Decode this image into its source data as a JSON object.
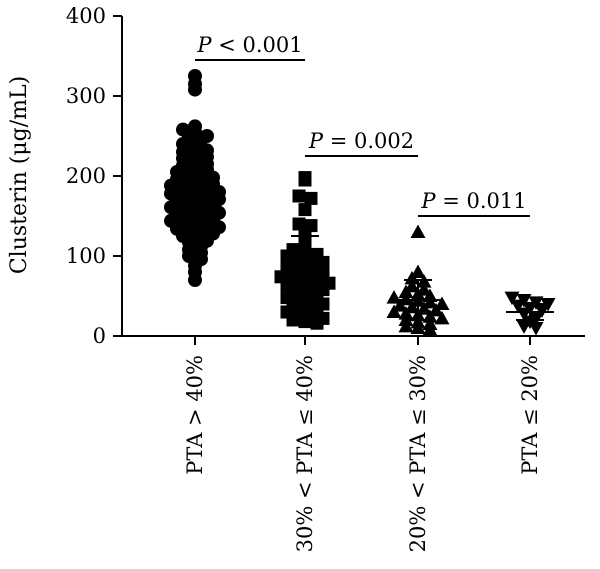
{
  "chart_data": {
    "type": "scatter",
    "ylabel": "Clusterin (μg/mL)",
    "ylim": [
      0,
      400
    ],
    "yticks": [
      "0",
      "100",
      "200",
      "300",
      "400"
    ],
    "categories": [
      "PTA > 40%",
      "30% < PTA ≤ 40%",
      "20% < PTA ≤ 30%",
      "PTA ≤ 20%"
    ],
    "markers": [
      "circle",
      "square",
      "triangle-up",
      "triangle-down"
    ],
    "series": [
      {
        "values": [
          325,
          315,
          308,
          262,
          258,
          255,
          250,
          248,
          245,
          240,
          235,
          232,
          230,
          226,
          224,
          222,
          218,
          215,
          213,
          211,
          208,
          205,
          203,
          200,
          198,
          196,
          194,
          192,
          190,
          188,
          186,
          184,
          182,
          180,
          178,
          176,
          175,
          173,
          171,
          169,
          167,
          165,
          163,
          161,
          160,
          158,
          156,
          154,
          152,
          150,
          148,
          146,
          144,
          142,
          140,
          138,
          136,
          134,
          132,
          130,
          128,
          125,
          122,
          119,
          117,
          112,
          108,
          104,
          100,
          96,
          88,
          80,
          70
        ],
        "median": 187,
        "spread": [
          145,
          230
        ]
      },
      {
        "values": [
          198,
          195,
          175,
          172,
          158,
          140,
          138,
          127,
          120,
          108,
          105,
          102,
          100,
          97,
          95,
          92,
          90,
          88,
          86,
          84,
          82,
          80,
          78,
          76,
          74,
          72,
          70,
          68,
          66,
          64,
          62,
          60,
          58,
          55,
          52,
          50,
          48,
          45,
          42,
          40,
          38,
          35,
          32,
          30,
          28,
          25,
          22,
          20,
          18,
          16
        ],
        "median": 80,
        "spread": [
          35,
          125
        ]
      },
      {
        "values": [
          130,
          80,
          72,
          68,
          62,
          58,
          55,
          52,
          50,
          48,
          46,
          44,
          42,
          40,
          38,
          36,
          34,
          32,
          30,
          28,
          26,
          24,
          22,
          20,
          17,
          15,
          12,
          10,
          8
        ],
        "median": 45,
        "spread": [
          20,
          70
        ]
      },
      {
        "values": [
          48,
          45,
          42,
          40,
          38,
          35,
          32,
          28,
          22,
          18,
          12,
          10
        ],
        "median": 30,
        "spread": [
          20,
          40
        ]
      }
    ],
    "annotations": [
      {
        "italic": "P",
        "text": " < 0.001",
        "from": 0,
        "to": 1,
        "y": 345
      },
      {
        "italic": "P",
        "text": " = 0.002",
        "from": 1,
        "to": 2,
        "y": 225
      },
      {
        "italic": "P",
        "text": " = 0.011",
        "from": 2,
        "to": 3,
        "y": 150
      }
    ],
    "grid": false,
    "marker_color": "#000000"
  }
}
